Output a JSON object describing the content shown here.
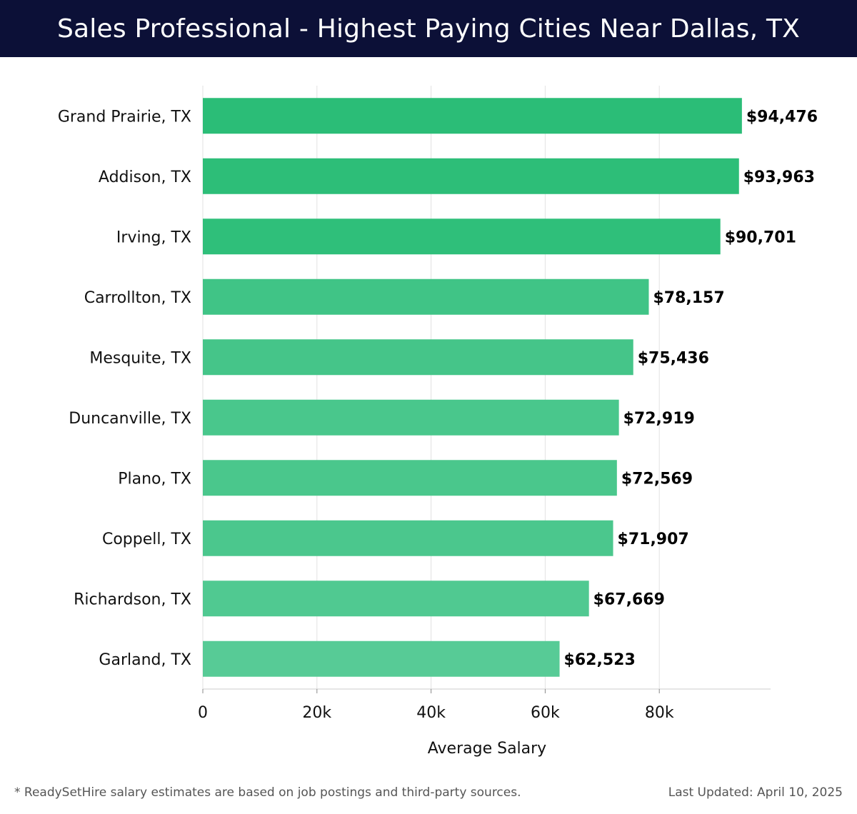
{
  "title": "Sales Professional - Highest Paying Cities Near Dallas, TX",
  "chart_data": {
    "type": "bar",
    "orientation": "horizontal",
    "title": "Sales Professional - Highest Paying Cities Near Dallas, TX",
    "categories": [
      "Grand Prairie, TX",
      "Addison, TX",
      "Irving, TX",
      "Carrollton, TX",
      "Mesquite, TX",
      "Duncanville, TX",
      "Plano, TX",
      "Coppell, TX",
      "Richardson, TX",
      "Garland, TX"
    ],
    "values": [
      94476,
      93963,
      90701,
      78157,
      75436,
      72919,
      72569,
      71907,
      67669,
      62523
    ],
    "value_labels": [
      "$94,476",
      "$93,963",
      "$90,701",
      "$78,157",
      "$75,436",
      "$72,919",
      "$72,569",
      "$71,907",
      "$67,669",
      "$62,523"
    ],
    "xlabel": "Average Salary",
    "ylabel": "",
    "xlim": [
      0,
      99500
    ],
    "xticks": [
      0,
      20000,
      40000,
      60000,
      80000
    ],
    "xtick_labels": [
      "0",
      "20k",
      "40k",
      "60k",
      "80k"
    ],
    "grid": true,
    "colors": [
      "#2bbd77",
      "#2dbe78",
      "#2fbf7a",
      "#40c486",
      "#45c589",
      "#49c78c",
      "#4ac78c",
      "#4bc78d",
      "#50c991",
      "#57cb96"
    ]
  },
  "footer": {
    "note": "* ReadySetHire salary estimates are based on job postings and third-party sources.",
    "updated": "Last Updated: April 10, 2025"
  }
}
